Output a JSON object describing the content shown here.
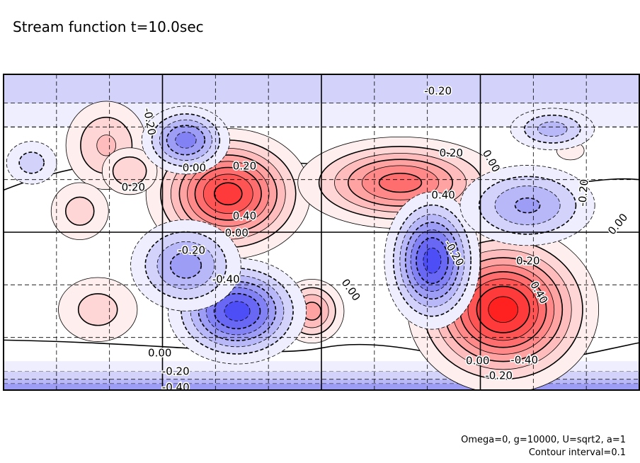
{
  "chart_data": {
    "type": "contour",
    "title": "Stream function t=10.0sec",
    "xlim": [
      0,
      12
    ],
    "ylim": [
      -3,
      3
    ],
    "grid": true,
    "contour_interval": 0.1,
    "colors": {
      "positive": [
        "#ffeeee",
        "#ffd6d6",
        "#ffbcbc",
        "#ffa2a2",
        "#ff8888",
        "#ff6e6e",
        "#ff5454",
        "#ff3a3a",
        "#ff2020"
      ],
      "negative": [
        "#eeeefe",
        "#d2d2fb",
        "#b8b8f9",
        "#9d9df6",
        "#8282f5",
        "#6868f5",
        "#4e4ef7",
        "#3434fa",
        "#1a1afd"
      ]
    },
    "bands": [
      {
        "value": -0.2,
        "y": [
          2.45,
          3.0
        ]
      },
      {
        "value": -0.1,
        "y": [
          2.0,
          2.45
        ]
      },
      {
        "value": -0.1,
        "y": [
          -2.65,
          -2.45
        ]
      },
      {
        "value": -0.2,
        "y": [
          -2.8,
          -2.65
        ]
      },
      {
        "value": -0.3,
        "y": [
          -2.88,
          -2.8
        ]
      },
      {
        "value": -0.4,
        "y": [
          -3.0,
          -2.88
        ]
      }
    ],
    "extrema": [
      {
        "x": 4.24,
        "y": 0.73,
        "amp": 0.85,
        "sx": 0.75,
        "sy": 0.6
      },
      {
        "x": 7.49,
        "y": 0.94,
        "amp": 0.65,
        "sx": 1.0,
        "sy": 0.45
      },
      {
        "x": 9.43,
        "y": -1.47,
        "amp": 0.95,
        "sx": 0.85,
        "sy": 0.75
      },
      {
        "x": 5.82,
        "y": -1.5,
        "amp": 0.45,
        "sx": 0.35,
        "sy": 0.35
      },
      {
        "x": 1.94,
        "y": 1.65,
        "amp": 0.32,
        "sx": 0.5,
        "sy": 0.55
      },
      {
        "x": 2.38,
        "y": 1.16,
        "amp": 0.3,
        "sx": 0.35,
        "sy": 0.3
      },
      {
        "x": 1.44,
        "y": 0.4,
        "amp": 0.25,
        "sx": 0.4,
        "sy": 0.4
      },
      {
        "x": 1.78,
        "y": -1.47,
        "amp": 0.25,
        "sx": 0.55,
        "sy": 0.45
      },
      {
        "x": 10.7,
        "y": 1.55,
        "amp": 0.2,
        "sx": 0.22,
        "sy": 0.15
      },
      {
        "x": 3.44,
        "y": 1.75,
        "amp": -0.55,
        "sx": 0.45,
        "sy": 0.35
      },
      {
        "x": 4.41,
        "y": -1.5,
        "amp": -0.75,
        "sx": 0.65,
        "sy": 0.5
      },
      {
        "x": 3.44,
        "y": -0.63,
        "amp": -0.45,
        "sx": 0.6,
        "sy": 0.5
      },
      {
        "x": 8.09,
        "y": -0.54,
        "amp": -0.75,
        "sx": 0.45,
        "sy": 0.65
      },
      {
        "x": 9.89,
        "y": 0.51,
        "amp": -0.42,
        "sx": 0.75,
        "sy": 0.45
      },
      {
        "x": 10.36,
        "y": 1.96,
        "amp": -0.35,
        "sx": 0.5,
        "sy": 0.25
      },
      {
        "x": 0.53,
        "y": 1.32,
        "amp": -0.25,
        "sx": 0.35,
        "sy": 0.3
      }
    ],
    "annotations": [
      {
        "text": "-0.20",
        "x": 8.2,
        "y": 2.68
      },
      {
        "text": "-0.20",
        "x": 2.75,
        "y": 2.1,
        "rotate": 80
      },
      {
        "text": "0.00",
        "x": 3.6,
        "y": 1.22
      },
      {
        "text": "0.20",
        "x": 4.55,
        "y": 1.25
      },
      {
        "text": "0.20",
        "x": 2.45,
        "y": 0.85
      },
      {
        "text": "0.40",
        "x": 4.55,
        "y": 0.3
      },
      {
        "text": "0.20",
        "x": 8.45,
        "y": 1.5
      },
      {
        "text": "0.40",
        "x": 8.3,
        "y": 0.7
      },
      {
        "text": "0.00",
        "x": 9.2,
        "y": 1.35,
        "rotate": 60
      },
      {
        "text": "-0.20",
        "x": 10.95,
        "y": 0.75,
        "rotate": -85
      },
      {
        "text": "0.00",
        "x": 11.6,
        "y": 0.15,
        "rotate": -50
      },
      {
        "text": "0.00",
        "x": 4.4,
        "y": 0.25
      },
      {
        "text": "-0.20",
        "x": 3.55,
        "y": -0.35
      },
      {
        "text": "-0.40",
        "x": 4.2,
        "y": -0.9
      },
      {
        "text": "0.00",
        "x": 6.55,
        "y": -1.1,
        "rotate": 55
      },
      {
        "text": "-0.20",
        "x": 8.5,
        "y": -0.4,
        "rotate": 60
      },
      {
        "text": "0.20",
        "x": 9.9,
        "y": -0.55
      },
      {
        "text": "0.40",
        "x": 10.1,
        "y": -1.15,
        "rotate": 60
      },
      {
        "text": "0.00",
        "x": 2.95,
        "y": -2.3
      },
      {
        "text": "-0.20",
        "x": 3.25,
        "y": -2.65
      },
      {
        "text": "-0.40",
        "x": 3.25,
        "y": -2.95
      },
      {
        "text": "0.00",
        "x": 8.95,
        "y": -2.45
      },
      {
        "text": "-0.20",
        "x": 9.35,
        "y": -2.68
      },
      {
        "text": "-0.40",
        "x": 9.35,
        "y": -2.92
      }
    ]
  },
  "footer": {
    "params": "Omega=0, g=10000, U=sqrt2, a=1",
    "interval": "Contour interval=0.1"
  }
}
